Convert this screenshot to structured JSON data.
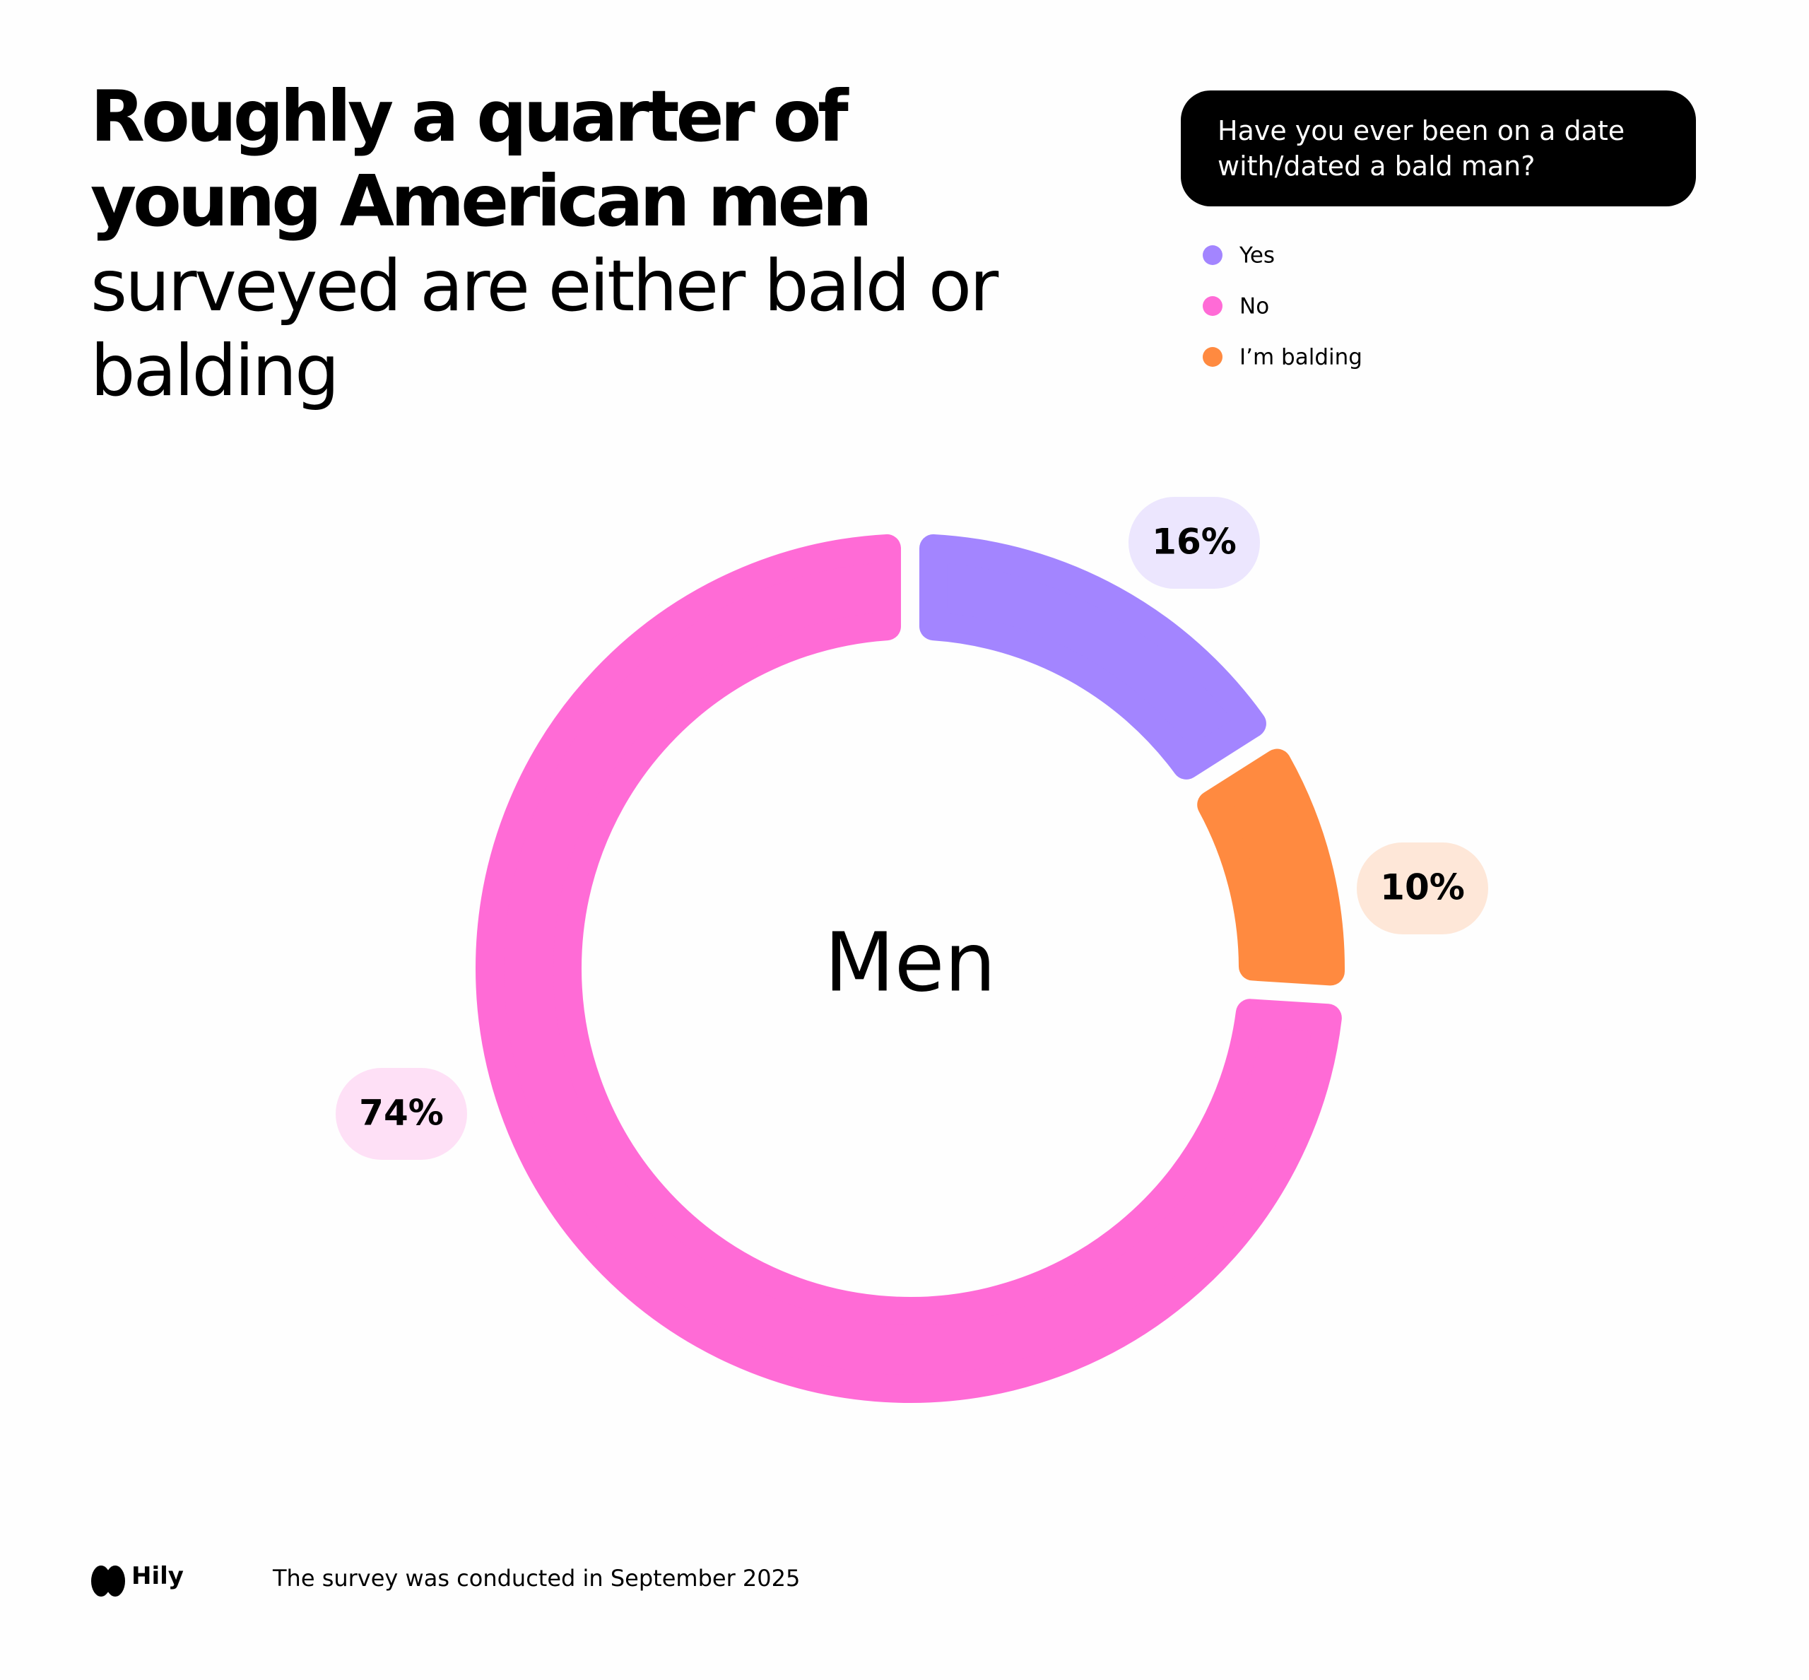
{
  "chart_data": {
    "type": "donut",
    "title_bold": "Roughly a quarter of young American men",
    "title_rest": "surveyed are either bald or balding",
    "question": "Have you ever been on a date with/dated a bald man?",
    "center_label": "Men",
    "categories": [
      "Yes",
      "No",
      "I’m balding"
    ],
    "values": [
      16,
      74,
      10
    ],
    "value_labels": [
      "16%",
      "74%",
      "10%"
    ],
    "colors": [
      "#a385ff",
      "#ff6bd6",
      "#ff8a40"
    ]
  },
  "footer": {
    "brand": "Hily",
    "note": "The survey was conducted in September 2025"
  }
}
